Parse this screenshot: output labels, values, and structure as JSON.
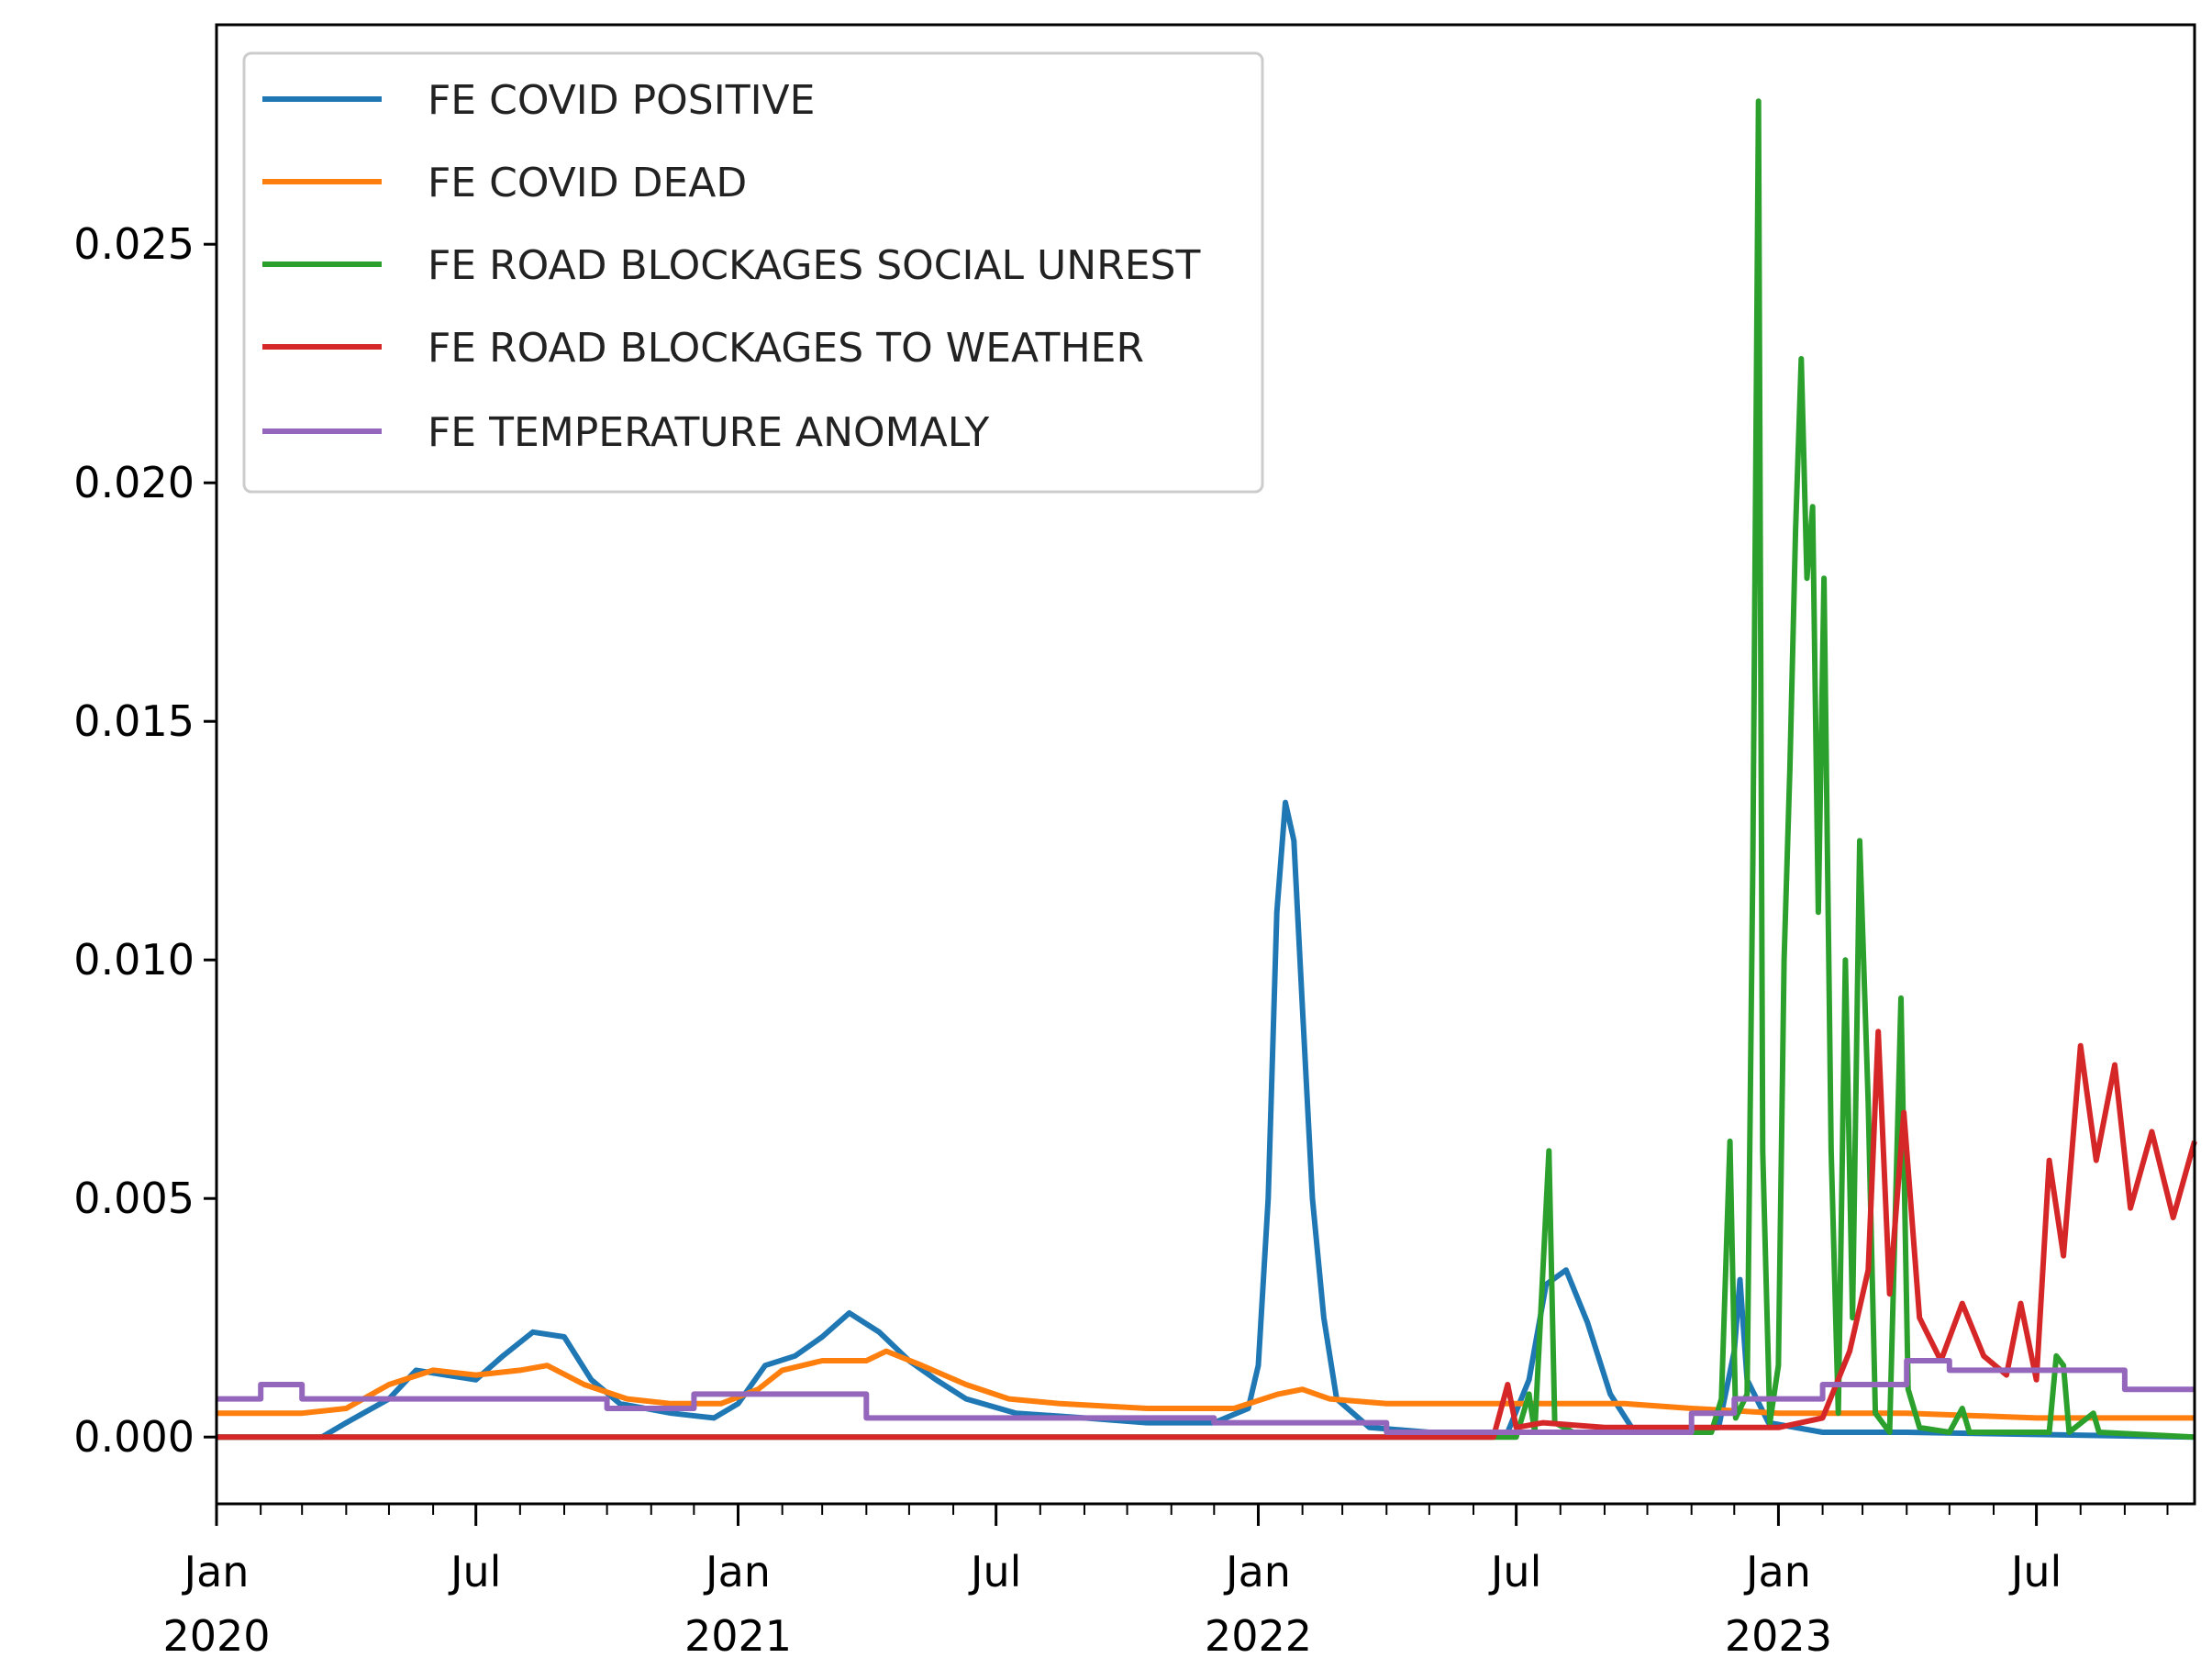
{
  "chart_data": {
    "type": "line",
    "title": "",
    "xlabel": "",
    "ylabel": "",
    "xlim": [
      "2020-01-01",
      "2023-10-20"
    ],
    "ylim": [
      -0.0014,
      0.0296
    ],
    "yticks": [
      {
        "value": 0.0,
        "label": "0.000"
      },
      {
        "value": 0.005,
        "label": "0.005"
      },
      {
        "value": 0.01,
        "label": "0.010"
      },
      {
        "value": 0.015,
        "label": "0.015"
      },
      {
        "value": 0.02,
        "label": "0.020"
      },
      {
        "value": 0.025,
        "label": "0.025"
      }
    ],
    "xticks": [
      {
        "date": "2020-01-01",
        "label": [
          "Jan",
          "2020"
        ]
      },
      {
        "date": "2020-07-01",
        "label": [
          "Jul"
        ]
      },
      {
        "date": "2021-01-01",
        "label": [
          "Jan",
          "2021"
        ]
      },
      {
        "date": "2021-07-01",
        "label": [
          "Jul"
        ]
      },
      {
        "date": "2022-01-01",
        "label": [
          "Jan",
          "2022"
        ]
      },
      {
        "date": "2022-07-01",
        "label": [
          "Jul"
        ]
      },
      {
        "date": "2023-01-01",
        "label": [
          "Jan",
          "2023"
        ]
      },
      {
        "date": "2023-07-01",
        "label": [
          "Jul"
        ]
      }
    ],
    "grid": false,
    "legend": {
      "placement": "top-left"
    },
    "series": [
      {
        "name": "FE COVID POSITIVE",
        "color": "#1f77b4",
        "points": [
          [
            "2020-01-01",
            0.0
          ],
          [
            "2020-03-15",
            0.0
          ],
          [
            "2020-04-01",
            0.0003
          ],
          [
            "2020-05-01",
            0.0008
          ],
          [
            "2020-05-20",
            0.0014
          ],
          [
            "2020-06-10",
            0.0013
          ],
          [
            "2020-07-01",
            0.0012
          ],
          [
            "2020-07-20",
            0.0017
          ],
          [
            "2020-08-10",
            0.0022
          ],
          [
            "2020-09-01",
            0.0021
          ],
          [
            "2020-09-20",
            0.0012
          ],
          [
            "2020-10-10",
            0.0007
          ],
          [
            "2020-11-15",
            0.0005
          ],
          [
            "2020-12-15",
            0.0004
          ],
          [
            "2021-01-01",
            0.0007
          ],
          [
            "2021-01-20",
            0.0015
          ],
          [
            "2021-02-10",
            0.0017
          ],
          [
            "2021-03-01",
            0.0021
          ],
          [
            "2021-03-20",
            0.0026
          ],
          [
            "2021-04-10",
            0.0022
          ],
          [
            "2021-05-01",
            0.0016
          ],
          [
            "2021-05-20",
            0.0012
          ],
          [
            "2021-06-10",
            0.0008
          ],
          [
            "2021-07-15",
            0.0005
          ],
          [
            "2021-09-01",
            0.0004
          ],
          [
            "2021-10-15",
            0.0003
          ],
          [
            "2021-12-01",
            0.0003
          ],
          [
            "2021-12-25",
            0.0006
          ],
          [
            "2022-01-01",
            0.0015
          ],
          [
            "2022-01-08",
            0.005
          ],
          [
            "2022-01-14",
            0.011
          ],
          [
            "2022-01-20",
            0.0133
          ],
          [
            "2022-01-26",
            0.0125
          ],
          [
            "2022-02-01",
            0.009
          ],
          [
            "2022-02-08",
            0.005
          ],
          [
            "2022-02-16",
            0.0025
          ],
          [
            "2022-02-25",
            0.0008
          ],
          [
            "2022-03-20",
            0.0002
          ],
          [
            "2022-05-01",
            0.0001
          ],
          [
            "2022-06-25",
            0.0001
          ],
          [
            "2022-07-10",
            0.0012
          ],
          [
            "2022-07-22",
            0.0032
          ],
          [
            "2022-08-05",
            0.0035
          ],
          [
            "2022-08-20",
            0.0024
          ],
          [
            "2022-09-05",
            0.0009
          ],
          [
            "2022-09-20",
            0.0002
          ],
          [
            "2022-10-20",
            0.0001
          ],
          [
            "2022-11-20",
            0.0002
          ],
          [
            "2022-12-01",
            0.0018
          ],
          [
            "2022-12-05",
            0.0033
          ],
          [
            "2022-12-10",
            0.0012
          ],
          [
            "2022-12-25",
            0.0003
          ],
          [
            "2023-02-01",
            0.0001
          ],
          [
            "2023-04-01",
            0.0001
          ],
          [
            "2023-10-20",
            0.0
          ]
        ]
      },
      {
        "name": "FE COVID DEAD",
        "color": "#ff7f0e",
        "points": [
          [
            "2020-01-01",
            0.0005
          ],
          [
            "2020-03-01",
            0.0005
          ],
          [
            "2020-04-01",
            0.0006
          ],
          [
            "2020-05-01",
            0.0011
          ],
          [
            "2020-06-01",
            0.0014
          ],
          [
            "2020-07-01",
            0.0013
          ],
          [
            "2020-08-01",
            0.0014
          ],
          [
            "2020-08-20",
            0.0015
          ],
          [
            "2020-09-15",
            0.0011
          ],
          [
            "2020-10-15",
            0.0008
          ],
          [
            "2020-11-15",
            0.0007
          ],
          [
            "2020-12-20",
            0.0007
          ],
          [
            "2021-01-15",
            0.001
          ],
          [
            "2021-02-01",
            0.0014
          ],
          [
            "2021-03-01",
            0.0016
          ],
          [
            "2021-04-01",
            0.0016
          ],
          [
            "2021-04-15",
            0.0018
          ],
          [
            "2021-05-10",
            0.0015
          ],
          [
            "2021-06-10",
            0.0011
          ],
          [
            "2021-07-10",
            0.0008
          ],
          [
            "2021-08-15",
            0.0007
          ],
          [
            "2021-10-15",
            0.0006
          ],
          [
            "2021-12-15",
            0.0006
          ],
          [
            "2022-01-15",
            0.0009
          ],
          [
            "2022-02-01",
            0.001
          ],
          [
            "2022-02-20",
            0.0008
          ],
          [
            "2022-04-01",
            0.0007
          ],
          [
            "2022-07-01",
            0.0007
          ],
          [
            "2022-09-15",
            0.0007
          ],
          [
            "2022-11-01",
            0.0006
          ],
          [
            "2023-01-01",
            0.0005
          ],
          [
            "2023-04-01",
            0.0005
          ],
          [
            "2023-07-01",
            0.0004
          ],
          [
            "2023-10-20",
            0.0004
          ]
        ]
      },
      {
        "name": "FE ROAD BLOCKAGES SOCIAL UNREST",
        "color": "#2ca02c",
        "points": [
          [
            "2020-01-01",
            0.0
          ],
          [
            "2022-07-01",
            0.0
          ],
          [
            "2022-07-10",
            0.0009
          ],
          [
            "2022-07-14",
            0.0001
          ],
          [
            "2022-07-24",
            0.006
          ],
          [
            "2022-07-28",
            0.0003
          ],
          [
            "2022-08-10",
            0.0001
          ],
          [
            "2022-11-15",
            0.0001
          ],
          [
            "2022-11-22",
            0.0008
          ],
          [
            "2022-11-28",
            0.0062
          ],
          [
            "2022-12-02",
            0.0004
          ],
          [
            "2022-12-10",
            0.0009
          ],
          [
            "2022-12-14",
            0.012
          ],
          [
            "2022-12-18",
            0.028
          ],
          [
            "2022-12-21",
            0.006
          ],
          [
            "2022-12-26",
            0.0003
          ],
          [
            "2023-01-01",
            0.0015
          ],
          [
            "2023-01-05",
            0.01
          ],
          [
            "2023-01-09",
            0.014
          ],
          [
            "2023-01-13",
            0.019
          ],
          [
            "2023-01-17",
            0.0226
          ],
          [
            "2023-01-21",
            0.018
          ],
          [
            "2023-01-25",
            0.0195
          ],
          [
            "2023-01-29",
            0.011
          ],
          [
            "2023-02-02",
            0.018
          ],
          [
            "2023-02-07",
            0.006
          ],
          [
            "2023-02-12",
            0.0005
          ],
          [
            "2023-02-17",
            0.01
          ],
          [
            "2023-02-22",
            0.0025
          ],
          [
            "2023-02-27",
            0.0125
          ],
          [
            "2023-03-05",
            0.007
          ],
          [
            "2023-03-10",
            0.0005
          ],
          [
            "2023-03-20",
            0.0001
          ],
          [
            "2023-03-28",
            0.0092
          ],
          [
            "2023-04-02",
            0.001
          ],
          [
            "2023-04-10",
            0.0002
          ],
          [
            "2023-05-01",
            0.0001
          ],
          [
            "2023-05-10",
            0.0006
          ],
          [
            "2023-05-15",
            0.0001
          ],
          [
            "2023-07-10",
            0.0001
          ],
          [
            "2023-07-15",
            0.0017
          ],
          [
            "2023-07-20",
            0.0015
          ],
          [
            "2023-07-24",
            0.0001
          ],
          [
            "2023-08-10",
            0.0005
          ],
          [
            "2023-08-14",
            0.0001
          ],
          [
            "2023-10-20",
            0.0
          ]
        ]
      },
      {
        "name": "FE ROAD BLOCKAGES TO WEATHER",
        "color": "#d62728",
        "points": [
          [
            "2020-01-01",
            0.0
          ],
          [
            "2022-06-15",
            0.0
          ],
          [
            "2022-06-25",
            0.0011
          ],
          [
            "2022-07-01",
            0.0002
          ],
          [
            "2022-07-20",
            0.0003
          ],
          [
            "2022-09-01",
            0.0002
          ],
          [
            "2022-11-01",
            0.0002
          ],
          [
            "2023-01-01",
            0.0002
          ],
          [
            "2023-02-01",
            0.0004
          ],
          [
            "2023-02-20",
            0.0018
          ],
          [
            "2023-03-05",
            0.0035
          ],
          [
            "2023-03-12",
            0.0085
          ],
          [
            "2023-03-20",
            0.003
          ],
          [
            "2023-03-30",
            0.0068
          ],
          [
            "2023-04-10",
            0.0025
          ],
          [
            "2023-04-25",
            0.0016
          ],
          [
            "2023-05-10",
            0.0028
          ],
          [
            "2023-05-25",
            0.0017
          ],
          [
            "2023-06-10",
            0.0013
          ],
          [
            "2023-06-20",
            0.0028
          ],
          [
            "2023-07-01",
            0.0012
          ],
          [
            "2023-07-10",
            0.0058
          ],
          [
            "2023-07-20",
            0.0038
          ],
          [
            "2023-08-01",
            0.0082
          ],
          [
            "2023-08-12",
            0.0058
          ],
          [
            "2023-08-25",
            0.0078
          ],
          [
            "2023-09-05",
            0.0048
          ],
          [
            "2023-09-20",
            0.0064
          ],
          [
            "2023-10-05",
            0.0046
          ],
          [
            "2023-10-20",
            0.0062
          ]
        ]
      },
      {
        "name": "FE TEMPERATURE ANOMALY",
        "color": "#9467bd",
        "points": [
          [
            "2020-01-01",
            0.0008
          ],
          [
            "2020-02-01",
            0.0008
          ],
          [
            "2020-02-01",
            0.0011
          ],
          [
            "2020-03-01",
            0.0011
          ],
          [
            "2020-03-01",
            0.0008
          ],
          [
            "2020-10-01",
            0.0008
          ],
          [
            "2020-10-01",
            0.0006
          ],
          [
            "2020-12-01",
            0.0006
          ],
          [
            "2020-12-01",
            0.0009
          ],
          [
            "2021-04-01",
            0.0009
          ],
          [
            "2021-04-01",
            0.0004
          ],
          [
            "2021-12-01",
            0.0004
          ],
          [
            "2021-12-01",
            0.0003
          ],
          [
            "2022-04-01",
            0.0003
          ],
          [
            "2022-04-01",
            0.0001
          ],
          [
            "2022-11-01",
            0.0001
          ],
          [
            "2022-11-01",
            0.0005
          ],
          [
            "2022-12-01",
            0.0005
          ],
          [
            "2022-12-01",
            0.0008
          ],
          [
            "2023-02-01",
            0.0008
          ],
          [
            "2023-02-01",
            0.0011
          ],
          [
            "2023-04-01",
            0.0011
          ],
          [
            "2023-04-01",
            0.0016
          ],
          [
            "2023-05-01",
            0.0016
          ],
          [
            "2023-05-01",
            0.0014
          ],
          [
            "2023-09-01",
            0.0014
          ],
          [
            "2023-09-01",
            0.001
          ],
          [
            "2023-10-20",
            0.001
          ]
        ]
      }
    ]
  }
}
